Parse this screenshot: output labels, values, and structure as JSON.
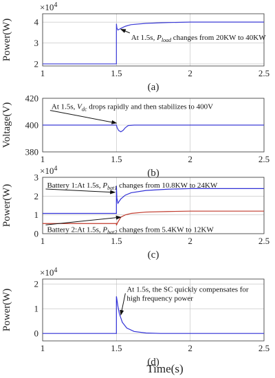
{
  "figure": {
    "xlabel": "Time(s)"
  },
  "chart_data": [
    {
      "panel": "(a)",
      "type": "line",
      "ylabel": "Power(W)",
      "multiplier": "×10",
      "multiplier_exp": "4",
      "xlim": [
        1,
        2.5
      ],
      "ylim": [
        1.9,
        4.4
      ],
      "xticks": [
        1,
        1.5,
        2,
        2.5
      ],
      "xtick_labels": [
        "1",
        "1.5",
        "2",
        "2.5"
      ],
      "yticks": [
        2,
        3,
        4
      ],
      "ytick_labels": [
        "2",
        "3",
        "4"
      ],
      "grid": true,
      "series": [
        {
          "color": "#3a3ad6",
          "points": [
            [
              1,
              2
            ],
            [
              1.499,
              2
            ],
            [
              1.5,
              2
            ],
            [
              1.5,
              3.92
            ],
            [
              1.503,
              3.72
            ],
            [
              1.51,
              3.62
            ],
            [
              1.53,
              3.7
            ],
            [
              1.56,
              3.8
            ],
            [
              1.6,
              3.88
            ],
            [
              1.7,
              3.94
            ],
            [
              1.85,
              3.98
            ],
            [
              2,
              4
            ],
            [
              2.5,
              4
            ]
          ]
        }
      ],
      "annotations": [
        {
          "pre": "At 1.5s, ",
          "var": "P",
          "sub": "load",
          "post": " changes from 20KW to 40KW",
          "tx": 1.6,
          "ty": 3.15,
          "ax": 1.53,
          "ay": 3.66
        }
      ]
    },
    {
      "panel": "(b)",
      "type": "line",
      "ylabel": "Voltage(V)",
      "xlim": [
        1,
        2.5
      ],
      "ylim": [
        380,
        420
      ],
      "xticks": [
        1,
        1.5,
        2,
        2.5
      ],
      "xtick_labels": [
        "1",
        "1.5",
        "2",
        "2.5"
      ],
      "yticks": [
        380,
        400,
        420
      ],
      "ytick_labels": [
        "380",
        "400",
        "420"
      ],
      "grid": true,
      "series": [
        {
          "color": "#3a3ad6",
          "points": [
            [
              1,
              400
            ],
            [
              1.5,
              400
            ],
            [
              1.505,
              398
            ],
            [
              1.515,
              396
            ],
            [
              1.53,
              395
            ],
            [
              1.545,
              396
            ],
            [
              1.56,
              398
            ],
            [
              1.58,
              399.7
            ],
            [
              1.62,
              400
            ],
            [
              2.5,
              400
            ]
          ]
        }
      ],
      "annotations": [
        {
          "pre": "At 1.5s, ",
          "var": "V",
          "sub": "dc",
          "post": " drops rapidly and then stabilizes to 400V",
          "tx": 1.06,
          "ty": 412,
          "ax": 1.5,
          "ay": 401.5
        }
      ]
    },
    {
      "panel": "(c)",
      "type": "line",
      "ylabel": "Power(W)",
      "multiplier": "×10",
      "multiplier_exp": "4",
      "xlim": [
        1,
        2.5
      ],
      "ylim": [
        0,
        3
      ],
      "xticks": [
        1,
        1.5,
        2,
        2.5
      ],
      "xtick_labels": [
        "1",
        "1.5",
        "2",
        "2.5"
      ],
      "yticks": [
        0,
        1,
        2,
        3
      ],
      "ytick_labels": [
        "0",
        "1",
        "2",
        "3"
      ],
      "grid": true,
      "series": [
        {
          "color": "#2f2fd6",
          "points": [
            [
              1,
              1.08
            ],
            [
              1.5,
              1.08
            ],
            [
              1.5,
              2.55
            ],
            [
              1.503,
              1.9
            ],
            [
              1.51,
              1.62
            ],
            [
              1.53,
              1.85
            ],
            [
              1.56,
              2.05
            ],
            [
              1.6,
              2.18
            ],
            [
              1.7,
              2.3
            ],
            [
              1.85,
              2.37
            ],
            [
              2,
              2.4
            ],
            [
              2.5,
              2.4
            ]
          ]
        },
        {
          "color": "#c0392b",
          "points": [
            [
              1,
              0.54
            ],
            [
              1.5,
              0.54
            ],
            [
              1.5,
              0.45
            ],
            [
              1.51,
              0.62
            ],
            [
              1.53,
              0.88
            ],
            [
              1.56,
              1.0
            ],
            [
              1.6,
              1.08
            ],
            [
              1.7,
              1.15
            ],
            [
              1.85,
              1.18
            ],
            [
              2,
              1.2
            ],
            [
              2.5,
              1.2
            ]
          ]
        }
      ],
      "annotations": [
        {
          "pre": "Battery 1:At 1.5s, ",
          "var": "P",
          "sub": "bat1",
          "post": " changes from 10.8KW to 24KW",
          "tx": 1.03,
          "ty": 2.45,
          "ax": 1.49,
          "ay": 2.2
        },
        {
          "pre": "Battery 2:At 1.5s, ",
          "var": "P",
          "sub": "bat2",
          "post": " changes from 5.4KW to 12KW",
          "tx": 1.03,
          "ty": 0.1,
          "ax": 1.53,
          "ay": 0.88
        }
      ]
    },
    {
      "panel": "(d)",
      "type": "line",
      "ylabel": "Power(W)",
      "multiplier": "×10",
      "multiplier_exp": "4",
      "xlim": [
        1,
        2.5
      ],
      "ylim": [
        -0.3,
        2.2
      ],
      "xticks": [
        1,
        1.5,
        2,
        2.5
      ],
      "xtick_labels": [
        "1",
        "1.5",
        "2",
        "2.5"
      ],
      "yticks": [
        0,
        1,
        2
      ],
      "ytick_labels": [
        "0",
        "1",
        "2"
      ],
      "grid": true,
      "series": [
        {
          "color": "#2f2fd6",
          "points": [
            [
              1,
              0
            ],
            [
              1.5,
              0
            ],
            [
              1.5,
              1.5
            ],
            [
              1.51,
              1.1
            ],
            [
              1.52,
              0.8
            ],
            [
              1.54,
              0.45
            ],
            [
              1.57,
              0.22
            ],
            [
              1.62,
              0.08
            ],
            [
              1.7,
              0.02
            ],
            [
              1.8,
              0
            ],
            [
              2.5,
              0
            ]
          ]
        }
      ],
      "annotations": [
        {
          "pre": "At 1.5s, the SC quickly compensates for",
          "var": "",
          "sub": "",
          "post": "",
          "tx": 1.57,
          "ty": 1.68,
          "ax": 1.53,
          "ay": 0.75
        },
        {
          "pre": "high frequency power",
          "var": "",
          "sub": "",
          "post": "",
          "tx": 1.57,
          "ty": 1.32
        }
      ]
    }
  ]
}
